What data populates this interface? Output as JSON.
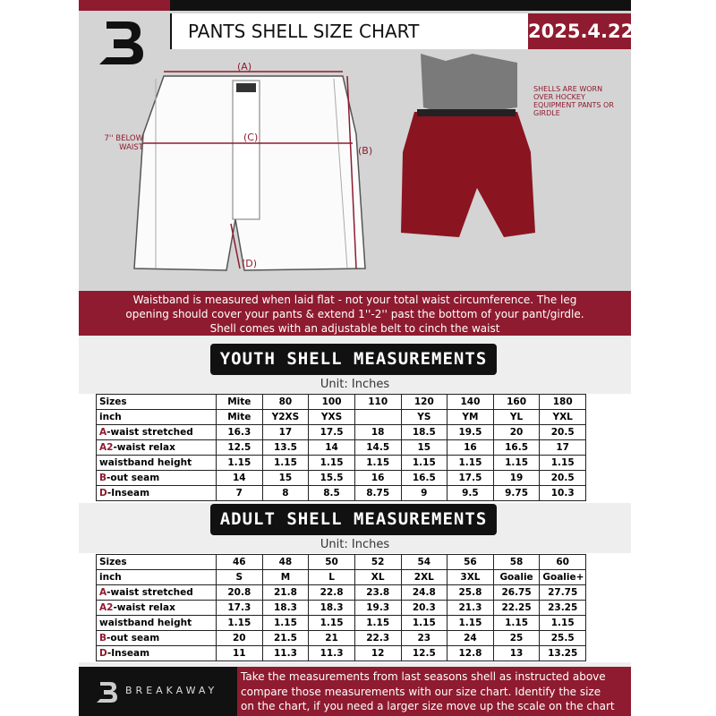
{
  "header": {
    "title": "PANTS SHELL SIZE CHART",
    "date": "2025.4.22"
  },
  "diagram": {
    "label_a": "(A)",
    "label_b": "(B)",
    "label_c": "(C)",
    "label_d": "(D)",
    "below_waist": "7'' BELOW WAIST",
    "note": "SHELLS ARE WORN OVER HOCKEY EQUIPMENT PANTS OR GIRDLE"
  },
  "banner": {
    "lines": [
      "Waistband is measured when laid flat - not your total waist circumference. The leg",
      "opening should cover your pants & extend 1''-2'' past the bottom of your pant/girdle.",
      "Shell comes with an adjustable belt to cinch the waist"
    ]
  },
  "youth": {
    "title": "YOUTH SHELL MEASUREMENTS",
    "unit": "Unit: Inches",
    "rows": [
      {
        "label": "Sizes",
        "cells": [
          "Mite",
          80,
          100,
          110,
          120,
          140,
          160,
          180
        ]
      },
      {
        "label": "inch",
        "cells": [
          "Mite",
          "Y2XS",
          "YXS",
          null,
          "YS",
          "YM",
          "YL",
          "YXL"
        ]
      },
      {
        "key": "A",
        "label": "-waist stretched",
        "cells": [
          16.3,
          17,
          17.5,
          18,
          18.5,
          19.5,
          20,
          20.5
        ]
      },
      {
        "key": "A2",
        "label": "-waist relax",
        "cells": [
          12.5,
          13.5,
          14,
          14.5,
          15,
          16,
          16.5,
          17
        ]
      },
      {
        "label": "waistband height",
        "cells": [
          1.15,
          1.15,
          1.15,
          1.15,
          1.15,
          1.15,
          1.15,
          1.15
        ]
      },
      {
        "key": "B",
        "label": "-out seam",
        "cells": [
          14,
          15,
          15.5,
          16,
          16.5,
          17.5,
          19,
          20.5
        ]
      },
      {
        "key": "D",
        "label": "-Inseam",
        "cells": [
          7,
          8,
          8.5,
          8.75,
          9,
          9.5,
          9.75,
          10.3
        ]
      }
    ]
  },
  "adult": {
    "title": "ADULT SHELL MEASUREMENTS",
    "unit": "Unit: Inches",
    "rows": [
      {
        "label": "Sizes",
        "cells": [
          46,
          48,
          50,
          52,
          54,
          56,
          58,
          60
        ]
      },
      {
        "label": "inch",
        "cells": [
          "S",
          "M",
          "L",
          "XL",
          "2XL",
          "3XL",
          "Goalie",
          "Goalie+"
        ]
      },
      {
        "key": "A",
        "label": "-waist stretched",
        "cells": [
          20.8,
          21.8,
          22.8,
          23.8,
          24.8,
          25.8,
          26.75,
          27.75
        ]
      },
      {
        "key": "A2",
        "label": "-waist relax",
        "cells": [
          17.3,
          18.3,
          18.3,
          19.3,
          20.3,
          21.3,
          22.25,
          23.25
        ]
      },
      {
        "label": "waistband height",
        "cells": [
          1.15,
          1.15,
          1.15,
          1.15,
          1.15,
          1.15,
          1.15,
          1.15
        ]
      },
      {
        "key": "B",
        "label": "-out seam",
        "cells": [
          20,
          21.5,
          21,
          22.3,
          23,
          24,
          25,
          25.5
        ]
      },
      {
        "key": "D",
        "label": "-Inseam",
        "cells": [
          11,
          11.3,
          11.3,
          12,
          12.5,
          12.8,
          13,
          13.25
        ]
      }
    ]
  },
  "footer": {
    "brand": "BREAKAWAY",
    "lines": [
      "Take the measurements from last seasons shell as instructed above",
      "compare those measurements  with our size chart. Identify the size",
      "on the chart, if you need a larger size move up the scale on the chart"
    ]
  }
}
